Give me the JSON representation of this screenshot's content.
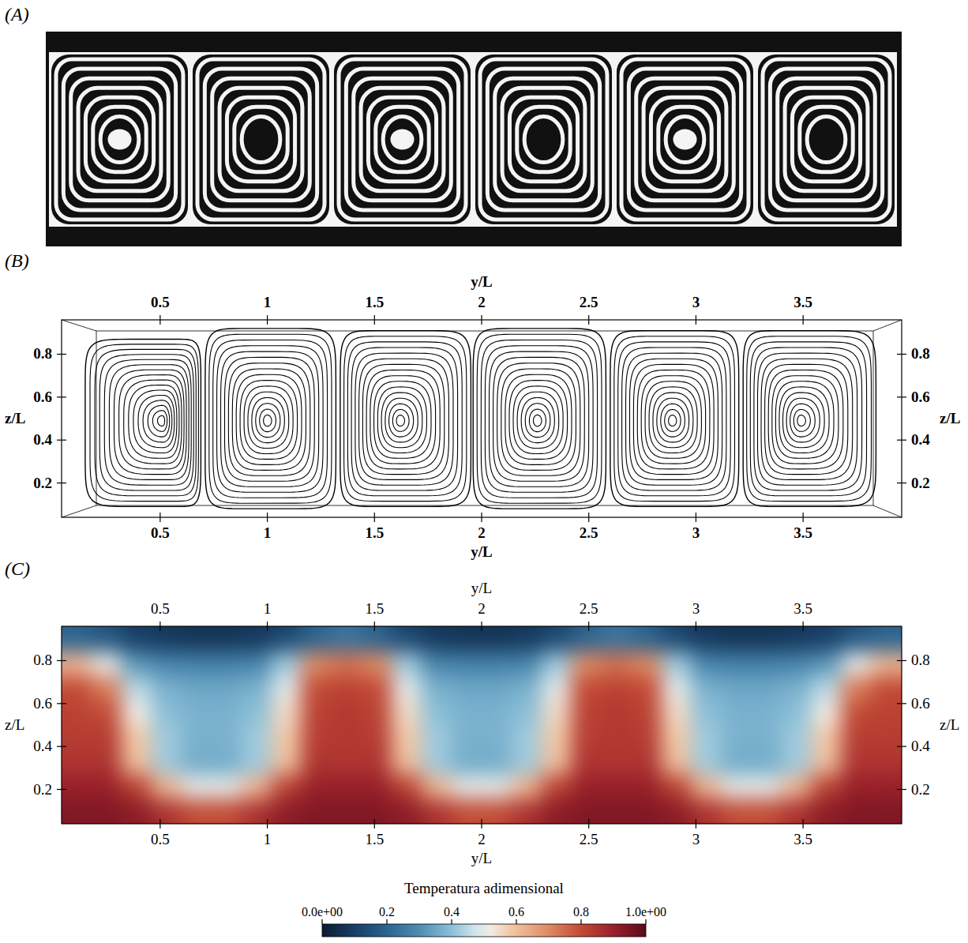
{
  "chart_data": [
    {
      "type": "image",
      "label": "(A)",
      "rolls": 6,
      "rings": 7
    },
    {
      "type": "streamlines",
      "label": "(B)",
      "x_label": "y/L",
      "y_label": "z/L",
      "xlim": [
        0.04,
        3.96
      ],
      "ylim": [
        0.04,
        0.96
      ],
      "xticks": [
        0.5,
        1,
        1.5,
        2,
        2.5,
        3,
        3.5
      ],
      "yticks": [
        0.2,
        0.4,
        0.6,
        0.8
      ],
      "rolls": [
        {
          "y_range": [
            0.15,
            0.69
          ],
          "z_range": [
            0.09,
            0.87
          ],
          "center": [
            0.51,
            0.49
          ]
        },
        {
          "y_range": [
            0.71,
            1.32
          ],
          "z_range": [
            0.08,
            0.92
          ],
          "center": [
            1.0,
            0.49
          ]
        },
        {
          "y_range": [
            1.34,
            1.95
          ],
          "z_range": [
            0.09,
            0.91
          ],
          "center": [
            1.62,
            0.49
          ]
        },
        {
          "y_range": [
            1.96,
            2.58
          ],
          "z_range": [
            0.08,
            0.92
          ],
          "center": [
            2.26,
            0.49
          ]
        },
        {
          "y_range": [
            2.6,
            3.2
          ],
          "z_range": [
            0.09,
            0.91
          ],
          "center": [
            2.89,
            0.49
          ]
        },
        {
          "y_range": [
            3.22,
            3.84
          ],
          "z_range": [
            0.09,
            0.91
          ],
          "center": [
            3.49,
            0.49
          ]
        }
      ]
    },
    {
      "type": "heatmap",
      "label": "(C)",
      "x_label": "y/L",
      "y_label": "z/L",
      "xlim": [
        0.04,
        3.96
      ],
      "ylim": [
        0.04,
        0.96
      ],
      "xticks": [
        0.5,
        1,
        1.5,
        2,
        2.5,
        3,
        3.5
      ],
      "yticks": [
        0.2,
        0.4,
        0.6,
        0.8
      ],
      "x_edges": [
        0.04,
        0.18,
        0.32,
        0.46,
        0.6,
        0.74,
        0.88,
        1.02,
        1.16,
        1.3,
        1.44,
        1.58,
        1.72,
        1.86,
        2.0,
        2.14,
        2.28,
        2.42,
        2.56,
        2.7,
        2.84,
        2.98,
        3.12,
        3.26,
        3.4,
        3.54,
        3.68,
        3.82,
        3.96
      ],
      "y_edges": [
        0.04,
        0.155,
        0.27,
        0.385,
        0.5,
        0.615,
        0.73,
        0.845,
        0.96
      ],
      "cells": [
        [
          0.94,
          0.94,
          0.92,
          0.86,
          0.8,
          0.8,
          0.86,
          0.92,
          0.94,
          0.94,
          0.94,
          0.92,
          0.86,
          0.8,
          0.8,
          0.86,
          0.92,
          0.94,
          0.94,
          0.94,
          0.92,
          0.86,
          0.8,
          0.8,
          0.86,
          0.92,
          0.94,
          0.94
        ],
        [
          0.9,
          0.9,
          0.82,
          0.62,
          0.5,
          0.5,
          0.62,
          0.82,
          0.9,
          0.9,
          0.9,
          0.82,
          0.62,
          0.5,
          0.5,
          0.62,
          0.82,
          0.9,
          0.9,
          0.9,
          0.82,
          0.62,
          0.5,
          0.5,
          0.62,
          0.82,
          0.9,
          0.9
        ],
        [
          0.85,
          0.85,
          0.6,
          0.42,
          0.36,
          0.36,
          0.42,
          0.6,
          0.85,
          0.85,
          0.85,
          0.6,
          0.42,
          0.36,
          0.36,
          0.42,
          0.6,
          0.85,
          0.85,
          0.85,
          0.6,
          0.42,
          0.36,
          0.36,
          0.42,
          0.6,
          0.85,
          0.85
        ],
        [
          0.83,
          0.83,
          0.58,
          0.42,
          0.37,
          0.37,
          0.42,
          0.58,
          0.83,
          0.84,
          0.83,
          0.58,
          0.42,
          0.37,
          0.37,
          0.42,
          0.58,
          0.83,
          0.84,
          0.83,
          0.58,
          0.42,
          0.37,
          0.37,
          0.42,
          0.58,
          0.83,
          0.83
        ],
        [
          0.82,
          0.8,
          0.52,
          0.4,
          0.37,
          0.37,
          0.4,
          0.55,
          0.82,
          0.84,
          0.82,
          0.55,
          0.4,
          0.37,
          0.37,
          0.4,
          0.55,
          0.82,
          0.84,
          0.82,
          0.55,
          0.4,
          0.37,
          0.37,
          0.4,
          0.52,
          0.8,
          0.82
        ],
        [
          0.8,
          0.72,
          0.45,
          0.37,
          0.35,
          0.35,
          0.37,
          0.5,
          0.8,
          0.82,
          0.8,
          0.5,
          0.37,
          0.35,
          0.35,
          0.37,
          0.5,
          0.8,
          0.82,
          0.8,
          0.5,
          0.37,
          0.35,
          0.35,
          0.37,
          0.45,
          0.72,
          0.8
        ],
        [
          0.62,
          0.5,
          0.32,
          0.28,
          0.27,
          0.27,
          0.28,
          0.42,
          0.7,
          0.74,
          0.7,
          0.42,
          0.28,
          0.27,
          0.27,
          0.28,
          0.42,
          0.7,
          0.74,
          0.7,
          0.42,
          0.28,
          0.27,
          0.27,
          0.28,
          0.32,
          0.5,
          0.62
        ],
        [
          0.2,
          0.16,
          0.1,
          0.08,
          0.07,
          0.07,
          0.08,
          0.12,
          0.2,
          0.24,
          0.2,
          0.12,
          0.08,
          0.07,
          0.07,
          0.08,
          0.12,
          0.2,
          0.24,
          0.2,
          0.12,
          0.08,
          0.07,
          0.07,
          0.08,
          0.1,
          0.16,
          0.2
        ]
      ],
      "colorbar": {
        "title": "Temperatura adimensional",
        "range": [
          0,
          1
        ],
        "ticks": [
          {
            "value": 0,
            "label": "0.0e+00"
          },
          0.2,
          0.4,
          0.6,
          0.8,
          {
            "value": 1,
            "label": "1.0e+00"
          }
        ]
      }
    }
  ]
}
